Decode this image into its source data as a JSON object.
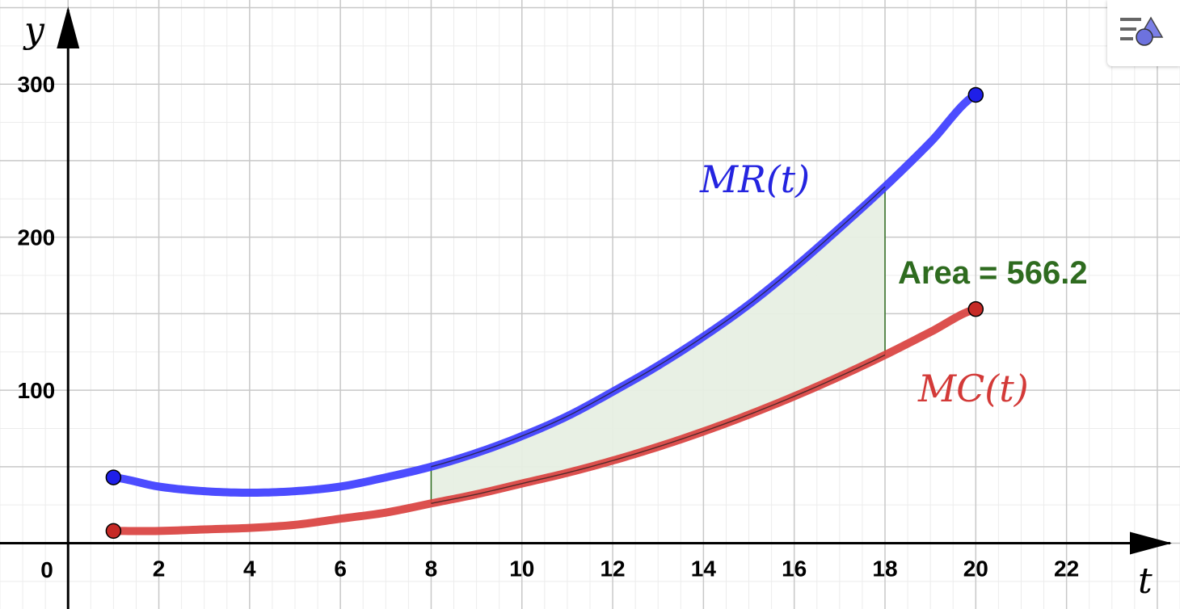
{
  "chart_data": {
    "type": "line",
    "title": "",
    "xlabel": "t",
    "ylabel": "y",
    "origin_label": "0",
    "xlim": [
      -1.5,
      24.5
    ],
    "ylim": [
      -43,
      355
    ],
    "x_major_ticks": [
      2,
      4,
      6,
      8,
      10,
      12,
      14,
      16,
      18,
      20,
      22
    ],
    "y_major_ticks": [
      100,
      200,
      300
    ],
    "grid": true,
    "minor_grid_step": {
      "x": 0.5,
      "y": 25
    },
    "series": [
      {
        "name": "MR(t)",
        "label_text": "MR(t)",
        "color": "#3d3dff",
        "domain": [
          1,
          20
        ],
        "points": [
          [
            1,
            43
          ],
          [
            2,
            37
          ],
          [
            3,
            34
          ],
          [
            4,
            33
          ],
          [
            5,
            34
          ],
          [
            6,
            37
          ],
          [
            7,
            43
          ],
          [
            8,
            50
          ],
          [
            9,
            59
          ],
          [
            10,
            70
          ],
          [
            11,
            83
          ],
          [
            12,
            99
          ],
          [
            13,
            116
          ],
          [
            14,
            135
          ],
          [
            15,
            156
          ],
          [
            16,
            180
          ],
          [
            17,
            206
          ],
          [
            18,
            233
          ],
          [
            19,
            262
          ],
          [
            20,
            293
          ]
        ]
      },
      {
        "name": "MC(t)",
        "label_text": "MC(t)",
        "color": "#d9413f",
        "domain": [
          1,
          20
        ],
        "points": [
          [
            1,
            8
          ],
          [
            2,
            8
          ],
          [
            3,
            9
          ],
          [
            4,
            10
          ],
          [
            5,
            12
          ],
          [
            6,
            16
          ],
          [
            7,
            20
          ],
          [
            8,
            26
          ],
          [
            9,
            32
          ],
          [
            10,
            39
          ],
          [
            11,
            46
          ],
          [
            12,
            54
          ],
          [
            13,
            63
          ],
          [
            14,
            73
          ],
          [
            15,
            84
          ],
          [
            16,
            96
          ],
          [
            17,
            109
          ],
          [
            18,
            123
          ],
          [
            19,
            138
          ],
          [
            20,
            153
          ]
        ]
      }
    ],
    "shaded_region": {
      "between": [
        "MR(t)",
        "MC(t)"
      ],
      "x_range": [
        8,
        18
      ],
      "fill": "#e7efe3",
      "stroke": "#2e6b1f"
    },
    "annotations": [
      {
        "text": "Area = 566.2",
        "color": "#2e6b1f"
      }
    ]
  },
  "toolbar": {
    "style_bar_icon": "style-bar-toggle-icon"
  }
}
